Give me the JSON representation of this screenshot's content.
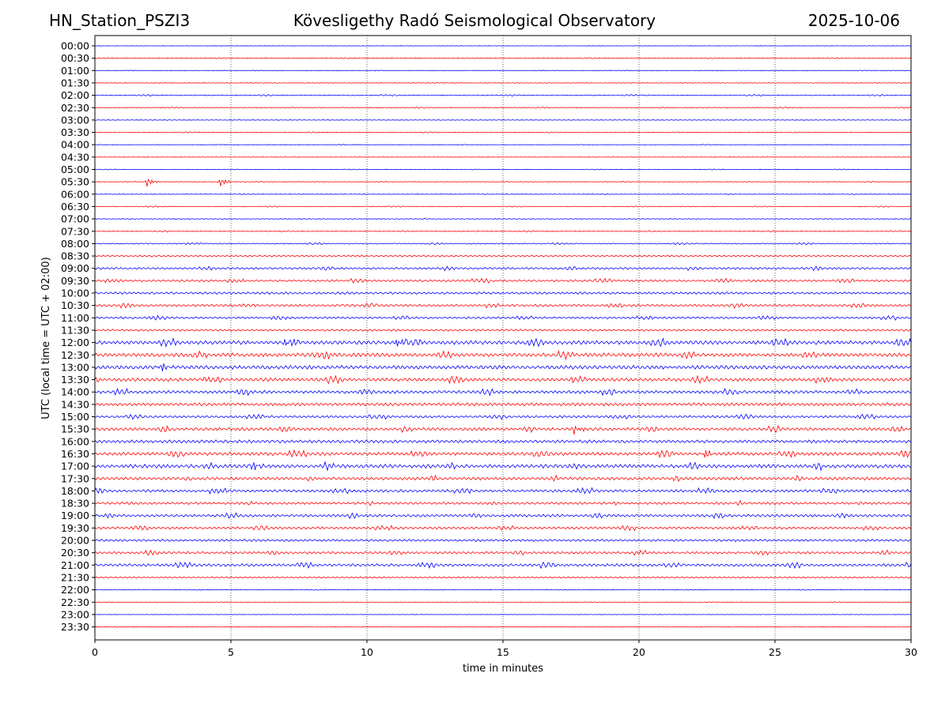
{
  "header": {
    "station": "HN_Station_PSZI3",
    "title": "Kövesligethy Radó Seismological Observatory",
    "date": "2025-10-06"
  },
  "chart_data": {
    "type": "line",
    "title": "Kövesligethy Radó Seismological Observatory",
    "xlabel": "time in minutes",
    "ylabel": "UTC (local time = UTC + 02:00)",
    "xlim": [
      0,
      30
    ],
    "x_ticks": [
      0,
      5,
      10,
      15,
      20,
      25,
      30
    ],
    "grid": "vertical dotted lines at 5, 10, 15, 20, 25 minutes",
    "row_labels": [
      "00:00",
      "00:30",
      "01:00",
      "01:30",
      "02:00",
      "02:30",
      "03:00",
      "03:30",
      "04:00",
      "04:30",
      "05:00",
      "05:30",
      "06:00",
      "06:30",
      "07:00",
      "07:30",
      "08:00",
      "08:30",
      "09:00",
      "09:30",
      "10:00",
      "10:30",
      "11:00",
      "11:30",
      "12:00",
      "12:30",
      "13:00",
      "13:30",
      "14:00",
      "14:30",
      "15:00",
      "15:30",
      "16:00",
      "16:30",
      "17:00",
      "17:30",
      "18:00",
      "18:30",
      "19:00",
      "19:30",
      "20:00",
      "20:30",
      "21:00",
      "21:30",
      "22:00",
      "22:30",
      "23:00",
      "23:30"
    ],
    "trace_colors": [
      "#0000ff",
      "#ff0000"
    ],
    "noise_level": [
      0.05,
      0.08,
      0.06,
      0.08,
      0.12,
      0.1,
      0.09,
      0.08,
      0.06,
      0.07,
      0.06,
      0.08,
      0.08,
      0.09,
      0.1,
      0.1,
      0.15,
      0.25,
      0.3,
      0.3,
      0.35,
      0.35,
      0.3,
      0.3,
      0.55,
      0.55,
      0.55,
      0.5,
      0.45,
      0.45,
      0.35,
      0.45,
      0.45,
      0.5,
      0.55,
      0.45,
      0.4,
      0.35,
      0.4,
      0.35,
      0.35,
      0.35,
      0.4,
      0.2,
      0.06,
      0.05,
      0.05,
      0.05
    ],
    "events": [
      {
        "row": 11,
        "minute": 1.9
      },
      {
        "row": 11,
        "minute": 4.6
      },
      {
        "row": 24,
        "minute": 7.0
      },
      {
        "row": 24,
        "minute": 11.1
      },
      {
        "row": 26,
        "minute": 2.4
      },
      {
        "row": 31,
        "minute": 17.6
      },
      {
        "row": 33,
        "minute": 22.4
      },
      {
        "row": 34,
        "minute": 5.8
      }
    ]
  }
}
